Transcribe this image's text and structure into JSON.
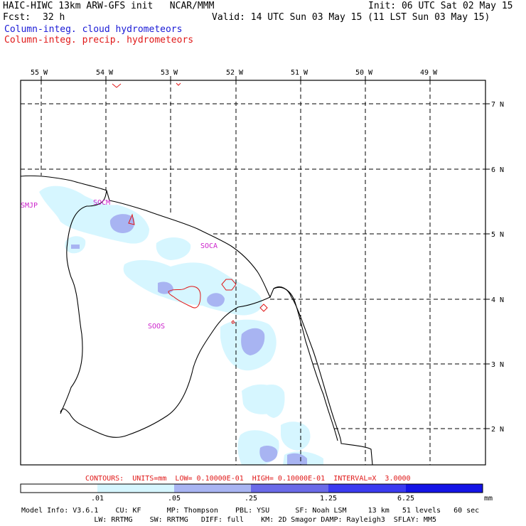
{
  "header": {
    "title": "HAIC-HIWC 13km ARW-GFS init   NCAR/MMM",
    "fcst_label": "Fcst:",
    "fcst_value": "32 h",
    "init": "Init: 06 UTC Sat 02 May 15",
    "valid": "Valid: 14 UTC Sun 03 May 15 (11 LST Sun 03 May 15)",
    "field1": "Column-integ. cloud hydrometeors",
    "field2": "Column-integ. precip. hydrometeors"
  },
  "colors": {
    "field1": "#1a1ad6",
    "field2": "#e01818",
    "station": "#cc22cc",
    "bins": [
      "#ffffff",
      "#d6f6ff",
      "#a8b4f2",
      "#6a6ae8",
      "#3a3af0",
      "#1414e6"
    ]
  },
  "map": {
    "lon_labels": [
      "55 W",
      "54 W",
      "53 W",
      "52 W",
      "51 W",
      "50 W",
      "49 W"
    ],
    "lat_labels": [
      "7 N",
      "6 N",
      "5 N",
      "4 N",
      "3 N",
      "2 N"
    ],
    "stations": [
      "SMJP",
      "SOCM",
      "SOCA",
      "SOOS"
    ]
  },
  "contours_line": "CONTOURS:  UNITS=mm  LOW= 0.10000E-01  HIGH= 0.10000E-01  INTERVAL=X  3.0000",
  "colorbar": {
    "ticks": [
      ".01",
      ".05",
      ".25",
      "1.25",
      "6.25"
    ],
    "unit": "mm"
  },
  "footer": {
    "line1": "Model Info: V3.6.1    CU: KF      MP: Thompson    PBL: YSU      SF: Noah LSM     13 km   51 levels   60 sec",
    "line2": "                 LW: RRTMG    SW: RRTMG   DIFF: full    KM: 2D Smagor DAMP: Rayleigh3  SFLAY: MM5"
  }
}
